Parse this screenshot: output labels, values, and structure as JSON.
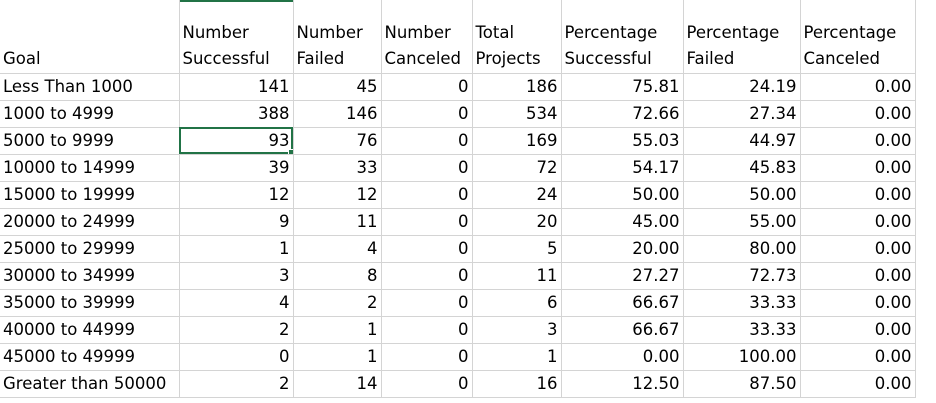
{
  "columns": [
    {
      "line1": "",
      "line2": "Goal"
    },
    {
      "line1": "Number",
      "line2": "Successful"
    },
    {
      "line1": "Number",
      "line2": "Failed"
    },
    {
      "line1": "Number",
      "line2": "Canceled"
    },
    {
      "line1": "Total",
      "line2": "Projects"
    },
    {
      "line1": "Percentage",
      "line2": "Successful"
    },
    {
      "line1": "Percentage",
      "line2": "Failed"
    },
    {
      "line1": "Percentage",
      "line2": "Canceled"
    }
  ],
  "rows": [
    [
      "Less Than 1000",
      "141",
      "45",
      "0",
      "186",
      "75.81",
      "24.19",
      "0.00"
    ],
    [
      "1000 to 4999",
      "388",
      "146",
      "0",
      "534",
      "72.66",
      "27.34",
      "0.00"
    ],
    [
      "5000 to 9999",
      "93",
      "76",
      "0",
      "169",
      "55.03",
      "44.97",
      "0.00"
    ],
    [
      "10000 to 14999",
      "39",
      "33",
      "0",
      "72",
      "54.17",
      "45.83",
      "0.00"
    ],
    [
      "15000 to 19999",
      "12",
      "12",
      "0",
      "24",
      "50.00",
      "50.00",
      "0.00"
    ],
    [
      "20000 to 24999",
      "9",
      "11",
      "0",
      "20",
      "45.00",
      "55.00",
      "0.00"
    ],
    [
      "25000 to 29999",
      "1",
      "4",
      "0",
      "5",
      "20.00",
      "80.00",
      "0.00"
    ],
    [
      "30000 to 34999",
      "3",
      "8",
      "0",
      "11",
      "27.27",
      "72.73",
      "0.00"
    ],
    [
      "35000 to 39999",
      "4",
      "2",
      "0",
      "6",
      "66.67",
      "33.33",
      "0.00"
    ],
    [
      "40000 to 44999",
      "2",
      "1",
      "0",
      "3",
      "66.67",
      "33.33",
      "0.00"
    ],
    [
      "45000 to 49999",
      "0",
      "1",
      "0",
      "1",
      "0.00",
      "100.00",
      "0.00"
    ],
    [
      "Greater than 50000",
      "2",
      "14",
      "0",
      "16",
      "12.50",
      "87.50",
      "0.00"
    ]
  ],
  "selected_cell": {
    "row": 2,
    "col": 1
  },
  "colors": {
    "selection": "#217346",
    "gridline": "#d4d4d4"
  }
}
